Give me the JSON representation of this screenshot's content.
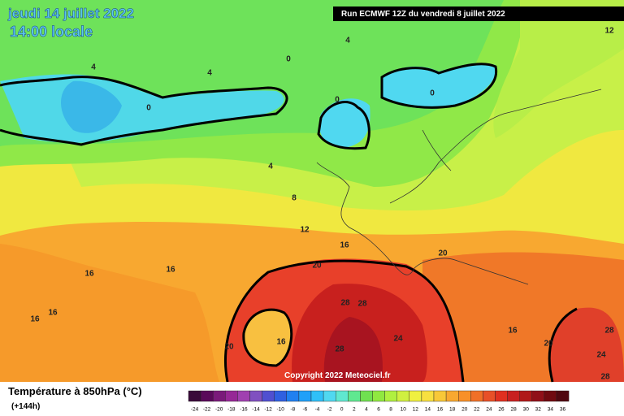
{
  "header": {
    "date": "jeudi 14 juillet 2022",
    "time": "14:00 locale",
    "run": "Run ECMWF 12Z du vendredi 8 juillet 2022"
  },
  "copyright": "Copyright 2022 Meteociel.fr",
  "legend": {
    "title": "Température à 850hPa (°C)",
    "lead": "(+144h)",
    "ticks": [
      "-24",
      "-22",
      "-20",
      "-18",
      "-16",
      "-14",
      "-12",
      "-10",
      "-8",
      "-6",
      "-4",
      "-2",
      "0",
      "2",
      "4",
      "6",
      "8",
      "10",
      "12",
      "14",
      "16",
      "18",
      "20",
      "22",
      "24",
      "26",
      "28",
      "30",
      "32",
      "34",
      "36"
    ]
  },
  "contour_labels": [
    "4",
    "4",
    "0",
    "4",
    "12",
    "0",
    "0",
    "0",
    "4",
    "8",
    "12",
    "16",
    "20",
    "20",
    "16",
    "16",
    "16",
    "16",
    "28",
    "28",
    "16",
    "20",
    "24",
    "28",
    "16",
    "20",
    "28",
    "24",
    "28"
  ]
}
